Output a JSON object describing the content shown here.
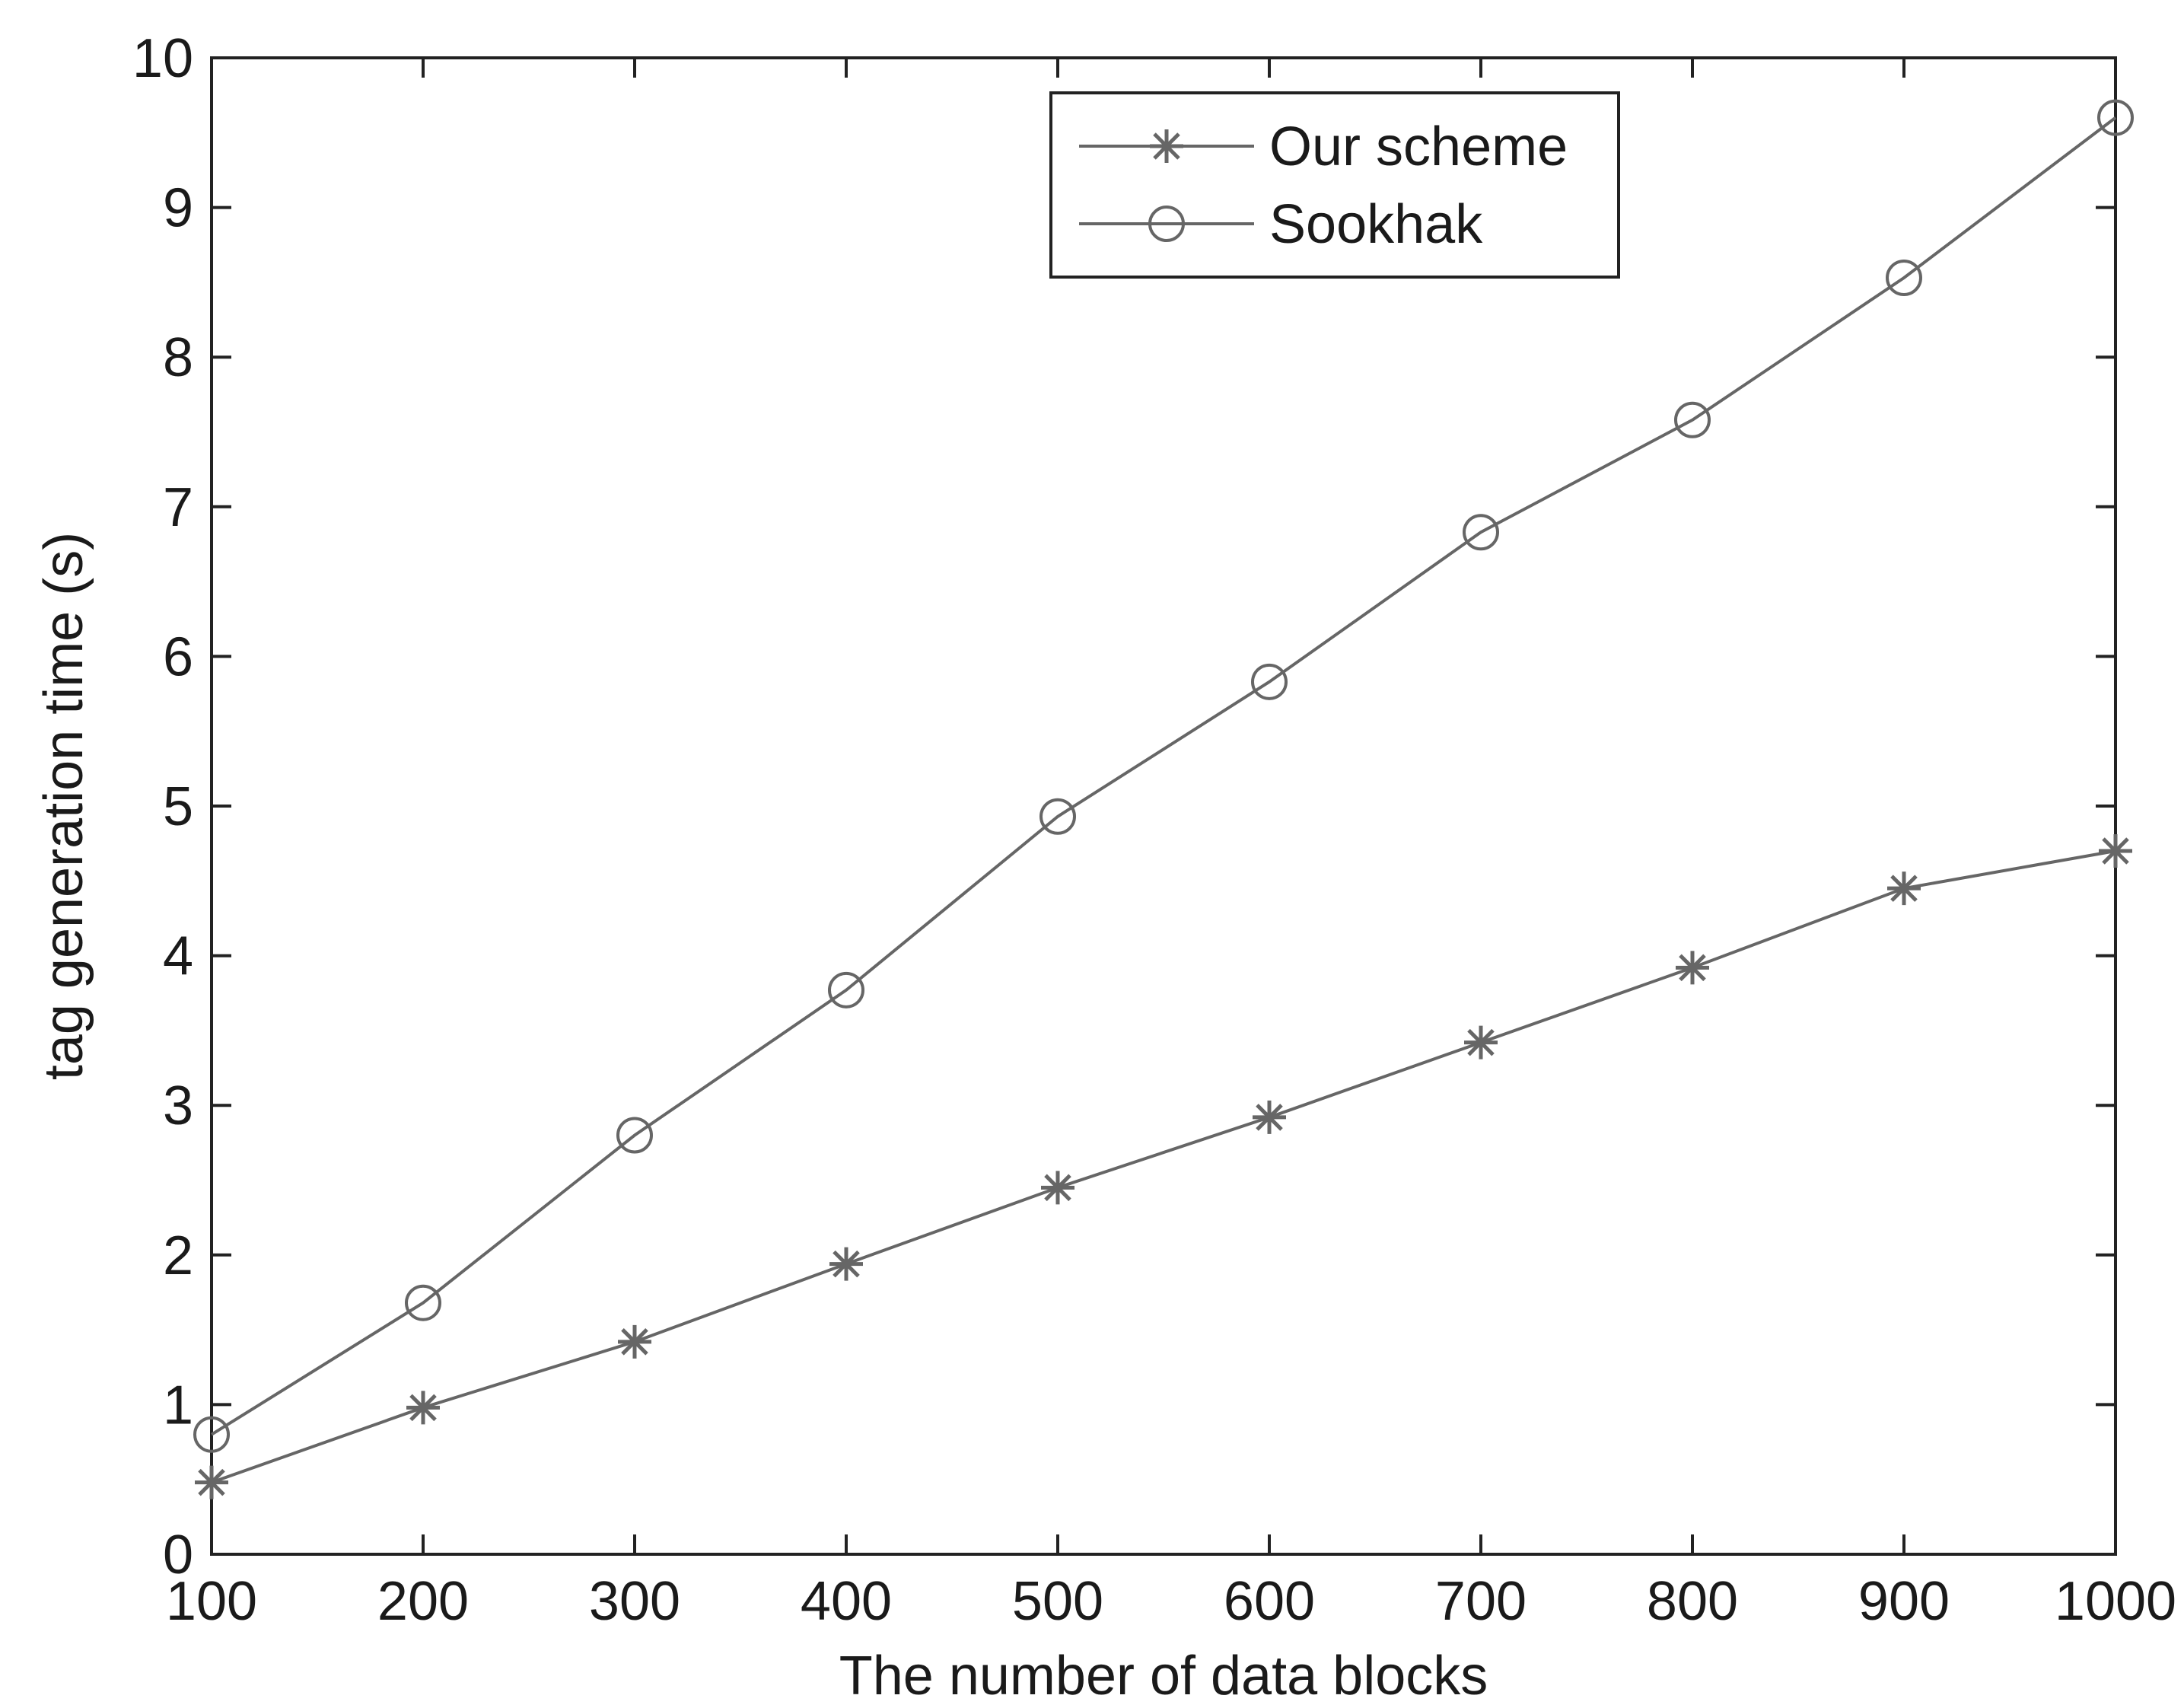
{
  "chart_data": {
    "type": "line",
    "xlabel": "The number of data blocks",
    "ylabel": "tag generation time (s)",
    "x": [
      100,
      200,
      300,
      400,
      500,
      600,
      700,
      800,
      900,
      1000
    ],
    "xlim": [
      100,
      1000
    ],
    "ylim": [
      0,
      10
    ],
    "xticks": [
      100,
      200,
      300,
      400,
      500,
      600,
      700,
      800,
      900,
      1000
    ],
    "yticks": [
      0,
      1,
      2,
      3,
      4,
      5,
      6,
      7,
      8,
      9,
      10
    ],
    "grid": false,
    "legend_position": "top-right",
    "series": [
      {
        "name": "Our scheme",
        "marker": "asterisk",
        "color": "#666666",
        "values": [
          0.48,
          0.98,
          1.42,
          1.94,
          2.45,
          2.92,
          3.42,
          3.92,
          4.45,
          4.7
        ]
      },
      {
        "name": "Sookhak",
        "marker": "circle",
        "color": "#666666",
        "values": [
          0.8,
          1.68,
          2.8,
          3.77,
          4.93,
          5.83,
          6.83,
          7.58,
          8.53,
          9.6
        ]
      }
    ]
  }
}
